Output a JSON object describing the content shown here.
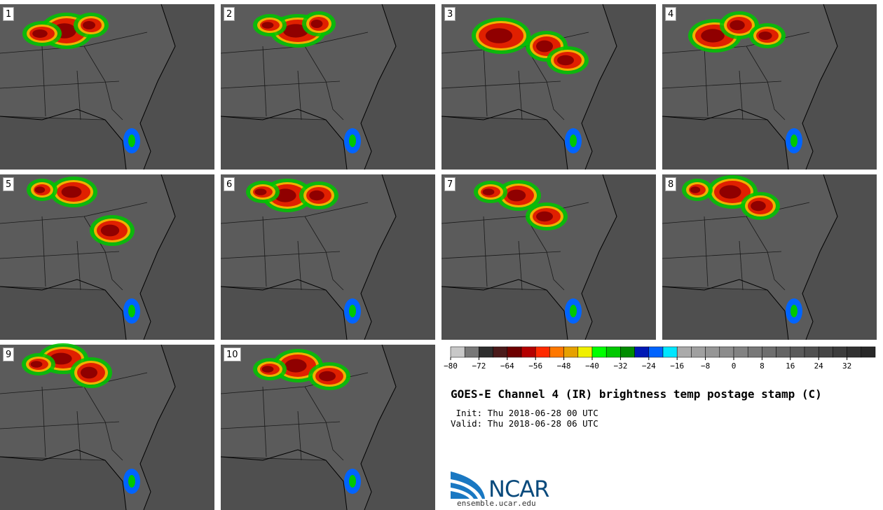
{
  "panels": [
    {
      "label": "1"
    },
    {
      "label": "2"
    },
    {
      "label": "3"
    },
    {
      "label": "4"
    },
    {
      "label": "5"
    },
    {
      "label": "6"
    },
    {
      "label": "7"
    },
    {
      "label": "8"
    },
    {
      "label": "9"
    },
    {
      "label": "10"
    }
  ],
  "colorbar": {
    "colors": [
      "#c8c8c8",
      "#787878",
      "#2e2e2e",
      "#4a1a1a",
      "#6e0000",
      "#b40000",
      "#ff2a00",
      "#ff7800",
      "#e6a000",
      "#f0f000",
      "#00ff00",
      "#00c800",
      "#008c00",
      "#0018b4",
      "#0064ff",
      "#00e6ff",
      "#aaaaaa",
      "#a0a0a0",
      "#969696",
      "#8c8c8c",
      "#828282",
      "#787878",
      "#6e6e6e",
      "#646464",
      "#5a5a5a",
      "#505050",
      "#464646",
      "#3c3c3c",
      "#323232",
      "#282828"
    ],
    "tick_labels": [
      "−80",
      "−72",
      "−64",
      "−56",
      "−48",
      "−40",
      "−32",
      "−24",
      "−16",
      "−8",
      "0",
      "8",
      "16",
      "24",
      "32"
    ]
  },
  "title": "GOES-E Channel 4 (IR) brightness temp postage stamp (C)",
  "init_line": " Init: Thu 2018-06-28 00 UTC",
  "valid_line": "Valid: Thu 2018-06-28 06 UTC",
  "logo": {
    "text": "NCAR",
    "url": "ensemble.ucar.edu",
    "brand_color": "#0a4a7c"
  }
}
